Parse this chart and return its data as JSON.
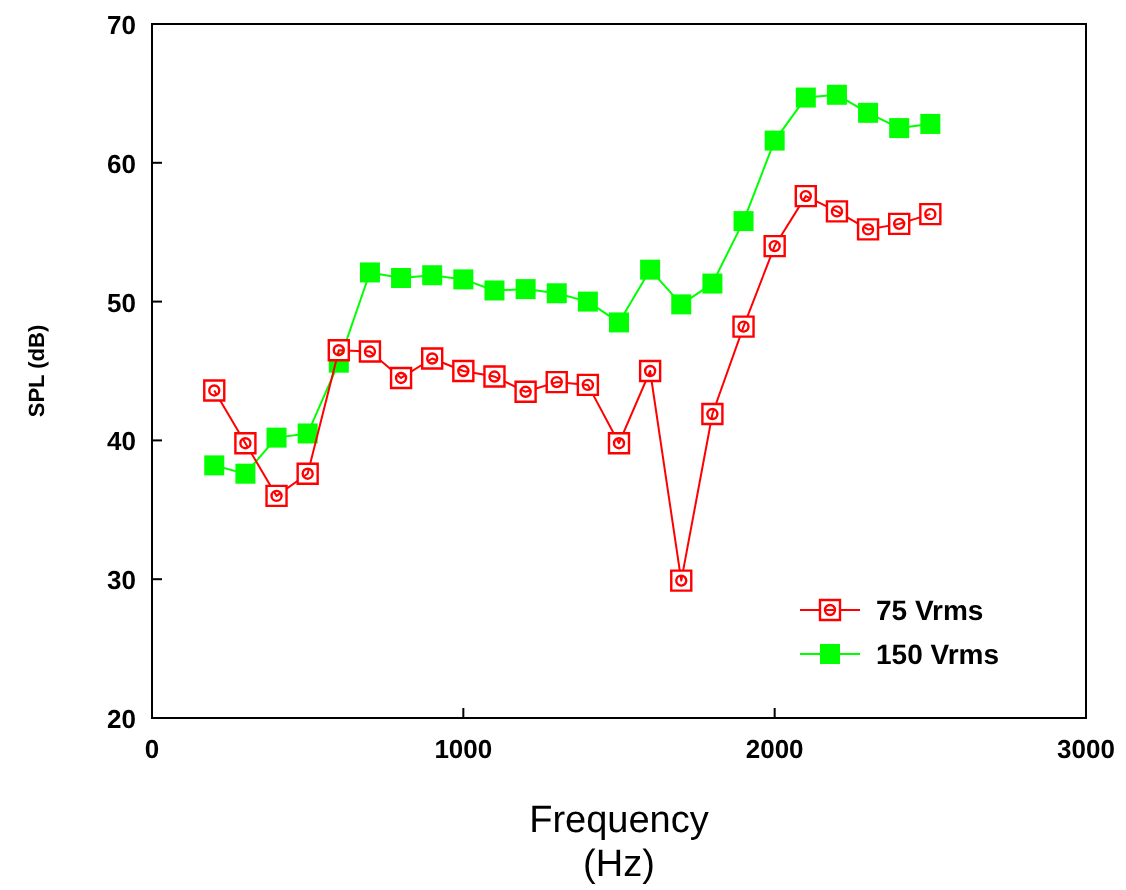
{
  "chart_data": {
    "type": "line",
    "xlabel": "Frequency\n(Hz)",
    "ylabel": "SPL (dB)",
    "x": [
      200,
      300,
      400,
      500,
      600,
      700,
      800,
      900,
      1000,
      1100,
      1200,
      1300,
      1400,
      1500,
      1600,
      1700,
      1800,
      1900,
      2000,
      2100,
      2200,
      2300,
      2400,
      2500
    ],
    "series": [
      {
        "name": "75 Vrms",
        "color": "#ff0000",
        "marker": "square",
        "values": [
          43.6,
          39.8,
          36,
          37.6,
          46.5,
          46.4,
          44.5,
          45.9,
          45,
          44.6,
          43.5,
          44.2,
          44,
          39.8,
          45,
          29.9,
          41.9,
          48.2,
          54,
          57.6,
          56.5,
          55.2,
          55.6,
          56.3
        ]
      },
      {
        "name": "150 Vrms",
        "color": "#00ff00",
        "marker": "square",
        "values": [
          38.2,
          37.6,
          40.2,
          40.5,
          45.6,
          52.1,
          51.7,
          51.9,
          51.6,
          50.8,
          50.9,
          50.6,
          50,
          48.5,
          52.3,
          49.8,
          51.3,
          55.8,
          61.6,
          64.7,
          64.9,
          63.6,
          62.5,
          62.8
        ]
      }
    ],
    "xlim": [
      0,
      3000
    ],
    "xticks": [
      0,
      1000,
      2000,
      3000
    ],
    "ylim": [
      20,
      70
    ],
    "yticks": [
      20,
      30,
      40,
      50,
      60,
      70
    ],
    "grid": false,
    "legend": "bottom right"
  }
}
